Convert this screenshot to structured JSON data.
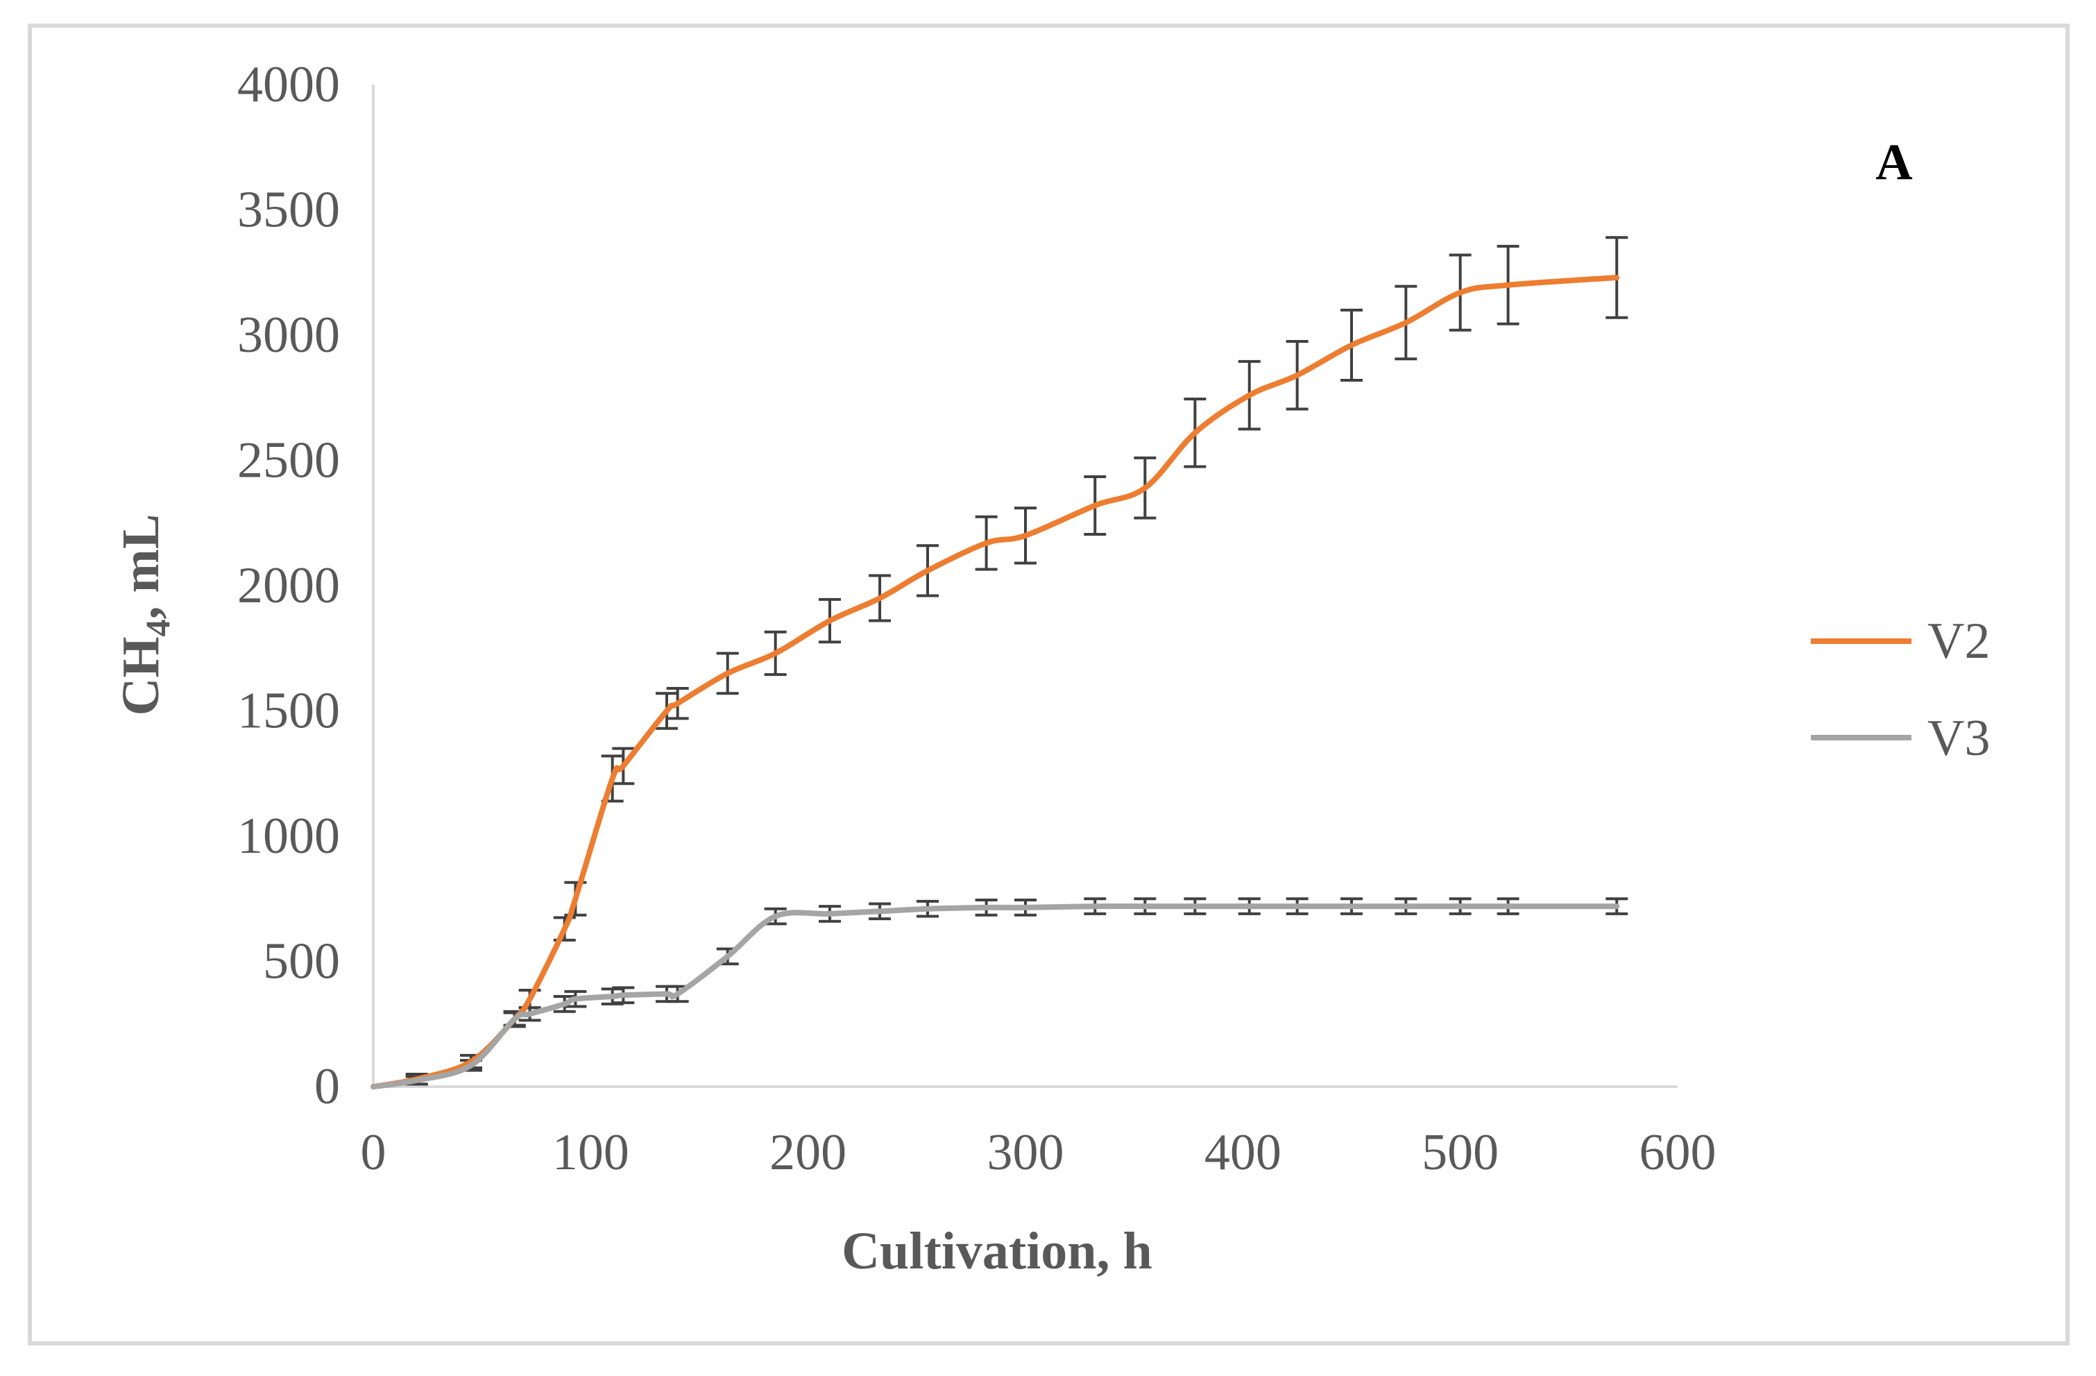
{
  "chart_data": {
    "type": "line",
    "xlabel": "Cultivation, h",
    "ylabel_main": "CH",
    "ylabel_sub": "4",
    "ylabel_tail": ", mL",
    "panel_label": "A",
    "xlim": [
      0,
      600
    ],
    "ylim": [
      0,
      4000
    ],
    "xticks": [
      0,
      100,
      200,
      300,
      400,
      500,
      600
    ],
    "yticks": [
      0,
      500,
      1000,
      1500,
      2000,
      2500,
      3000,
      3500,
      4000
    ],
    "grid": false,
    "legend_position": "right",
    "series": [
      {
        "name": "V2",
        "color": "#ED7D31",
        "points": [
          [
            0,
            0
          ],
          [
            20,
            30
          ],
          [
            45,
            100
          ],
          [
            65,
            270
          ],
          [
            72,
            350
          ],
          [
            88,
            630
          ],
          [
            93,
            750
          ],
          [
            110,
            1230
          ],
          [
            115,
            1280
          ],
          [
            135,
            1500
          ],
          [
            140,
            1530
          ],
          [
            163,
            1650
          ],
          [
            185,
            1730
          ],
          [
            210,
            1860
          ],
          [
            233,
            1950
          ],
          [
            255,
            2060
          ],
          [
            282,
            2170
          ],
          [
            300,
            2200
          ],
          [
            332,
            2320
          ],
          [
            355,
            2390
          ],
          [
            378,
            2610
          ],
          [
            403,
            2760
          ],
          [
            425,
            2840
          ],
          [
            450,
            2960
          ],
          [
            475,
            3050
          ],
          [
            500,
            3170
          ],
          [
            522,
            3200
          ],
          [
            572,
            3230
          ]
        ],
        "errors": [
          0,
          20,
          25,
          30,
          35,
          45,
          65,
          90,
          70,
          70,
          60,
          80,
          85,
          85,
          90,
          100,
          105,
          110,
          115,
          120,
          135,
          135,
          135,
          140,
          145,
          150,
          155,
          160
        ]
      },
      {
        "name": "V3",
        "color": "#A5A5A5",
        "points": [
          [
            0,
            0
          ],
          [
            20,
            25
          ],
          [
            45,
            85
          ],
          [
            65,
            270
          ],
          [
            72,
            290
          ],
          [
            88,
            330
          ],
          [
            93,
            350
          ],
          [
            110,
            360
          ],
          [
            115,
            365
          ],
          [
            135,
            370
          ],
          [
            140,
            370
          ],
          [
            163,
            520
          ],
          [
            185,
            680
          ],
          [
            210,
            690
          ],
          [
            233,
            700
          ],
          [
            255,
            710
          ],
          [
            282,
            715
          ],
          [
            300,
            715
          ],
          [
            332,
            720
          ],
          [
            355,
            720
          ],
          [
            378,
            720
          ],
          [
            403,
            720
          ],
          [
            425,
            720
          ],
          [
            450,
            720
          ],
          [
            475,
            720
          ],
          [
            500,
            720
          ],
          [
            522,
            720
          ],
          [
            572,
            720
          ]
        ],
        "errors": [
          0,
          15,
          20,
          25,
          25,
          30,
          30,
          30,
          30,
          30,
          30,
          30,
          30,
          30,
          30,
          30,
          30,
          30,
          30,
          30,
          30,
          30,
          30,
          30,
          30,
          30,
          30,
          30
        ]
      }
    ]
  }
}
